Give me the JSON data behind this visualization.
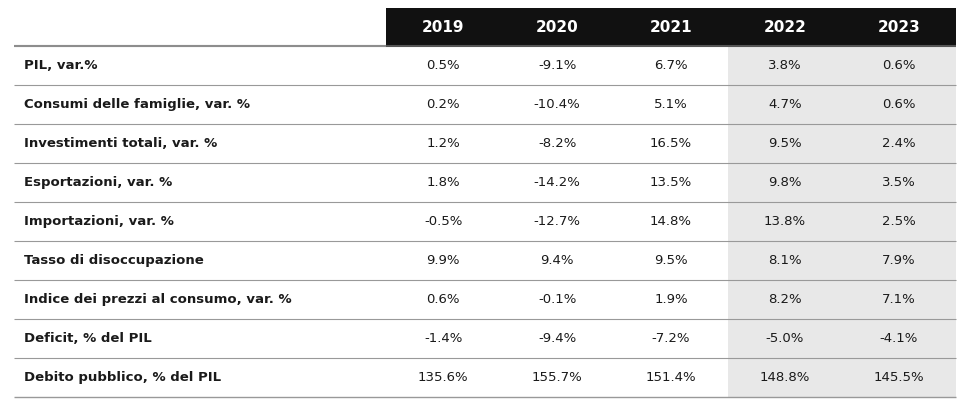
{
  "columns": [
    "2019",
    "2020",
    "2021",
    "2022",
    "2023"
  ],
  "rows": [
    {
      "label": "PIL, var.%",
      "values": [
        "0.5%",
        "-9.1%",
        "6.7%",
        "3.8%",
        "0.6%"
      ]
    },
    {
      "label": "Consumi delle famiglie, var. %",
      "values": [
        "0.2%",
        "-10.4%",
        "5.1%",
        "4.7%",
        "0.6%"
      ]
    },
    {
      "label": "Investimenti totali, var. %",
      "values": [
        "1.2%",
        "-8.2%",
        "16.5%",
        "9.5%",
        "2.4%"
      ]
    },
    {
      "label": "Esportazioni, var. %",
      "values": [
        "1.8%",
        "-14.2%",
        "13.5%",
        "9.8%",
        "3.5%"
      ]
    },
    {
      "label": "Importazioni, var. %",
      "values": [
        "-0.5%",
        "-12.7%",
        "14.8%",
        "13.8%",
        "2.5%"
      ]
    },
    {
      "label": "Tasso di disoccupazione",
      "values": [
        "9.9%",
        "9.4%",
        "9.5%",
        "8.1%",
        "7.9%"
      ]
    },
    {
      "label": "Indice dei prezzi al consumo, var. %",
      "values": [
        "0.6%",
        "-0.1%",
        "1.9%",
        "8.2%",
        "7.1%"
      ]
    },
    {
      "label": "Deficit, % del PIL",
      "values": [
        "-1.4%",
        "-9.4%",
        "-7.2%",
        "-5.0%",
        "-4.1%"
      ]
    },
    {
      "label": "Debito pubblico, % del PIL",
      "values": [
        "135.6%",
        "155.7%",
        "151.4%",
        "148.8%",
        "145.5%"
      ]
    }
  ],
  "header_bg": "#111111",
  "header_fg": "#ffffff",
  "white_bg": "#ffffff",
  "light_bg": "#e8e8e8",
  "text_color": "#1a1a1a",
  "border_color": "#999999",
  "figure_bg": "#ffffff",
  "fig_width": 9.64,
  "fig_height": 4.05,
  "dpi": 100
}
